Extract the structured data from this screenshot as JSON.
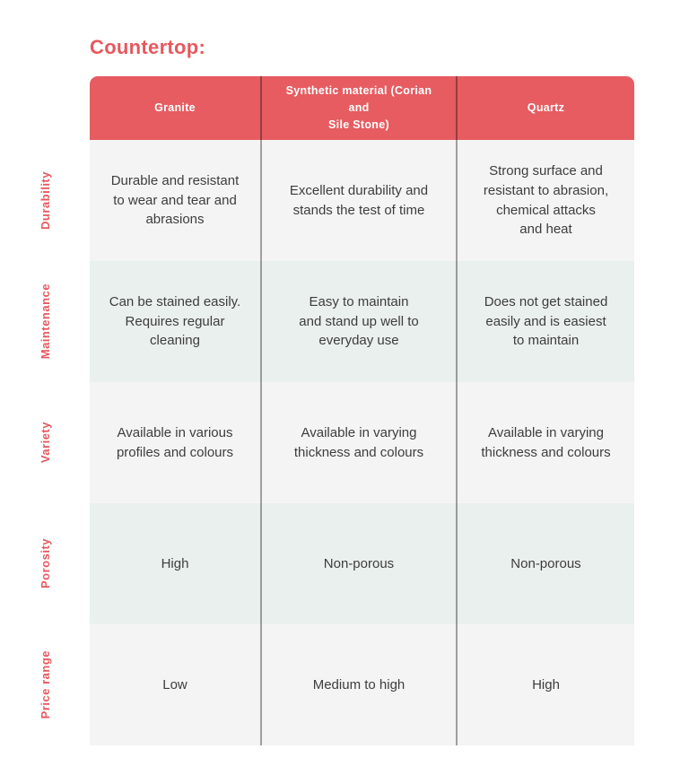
{
  "page": {
    "title": "Countertop:"
  },
  "colors": {
    "accent": "#e7585e",
    "header_bg": "#e65c61",
    "row_light": "#f5f4f4",
    "row_green": "#eaf0ed",
    "divider": "rgba(0,0,0,0.35)",
    "text": "#3d3d3d"
  },
  "table": {
    "columns": [
      "Granite",
      "Synthetic material (Corian and\nSile Stone)",
      "Quartz"
    ],
    "rows": [
      {
        "label": "Durability",
        "cells": [
          "Durable and resistant\nto wear and tear and\nabrasions",
          "Excellent durability and\nstands the test of time",
          "Strong surface and\nresistant to abrasion,\nchemical attacks\nand heat"
        ]
      },
      {
        "label": "Maintenance",
        "cells": [
          "Can be stained easily.\nRequires regular\ncleaning",
          "Easy to maintain\nand stand up well to\neveryday use",
          "Does not get stained\neasily and is easiest\nto maintain"
        ]
      },
      {
        "label": "Variety",
        "cells": [
          "Available in various\nprofiles and colours",
          "Available in varying\nthickness and colours",
          "Available in varying\nthickness and colours"
        ]
      },
      {
        "label": "Porosity",
        "cells": [
          "High",
          "Non-porous",
          "Non-porous"
        ]
      },
      {
        "label": "Price range",
        "cells": [
          "Low",
          "Medium to high",
          "High"
        ]
      }
    ]
  },
  "chart_data": {
    "type": "table",
    "title": "Countertop:",
    "columns": [
      "Granite",
      "Synthetic material (Corian and Sile Stone)",
      "Quartz"
    ],
    "row_headers": [
      "Durability",
      "Maintenance",
      "Variety",
      "Porosity",
      "Price range"
    ],
    "rows": [
      [
        "Durable and resistant to wear and tear and abrasions",
        "Excellent durability and stands the test of time",
        "Strong surface and resistant to abrasion, chemical attacks and heat"
      ],
      [
        "Can be stained easily. Requires regular cleaning",
        "Easy to maintain and stand up well to everyday use",
        "Does not get stained easily and is easiest to maintain"
      ],
      [
        "Available in various profiles and colours",
        "Available in varying thickness and colours",
        "Available in varying thickness and colours"
      ],
      [
        "High",
        "Non-porous",
        "Non-porous"
      ],
      [
        "Low",
        "Medium to high",
        "High"
      ]
    ],
    "legend_position": "none",
    "grid": "column-dividers"
  }
}
